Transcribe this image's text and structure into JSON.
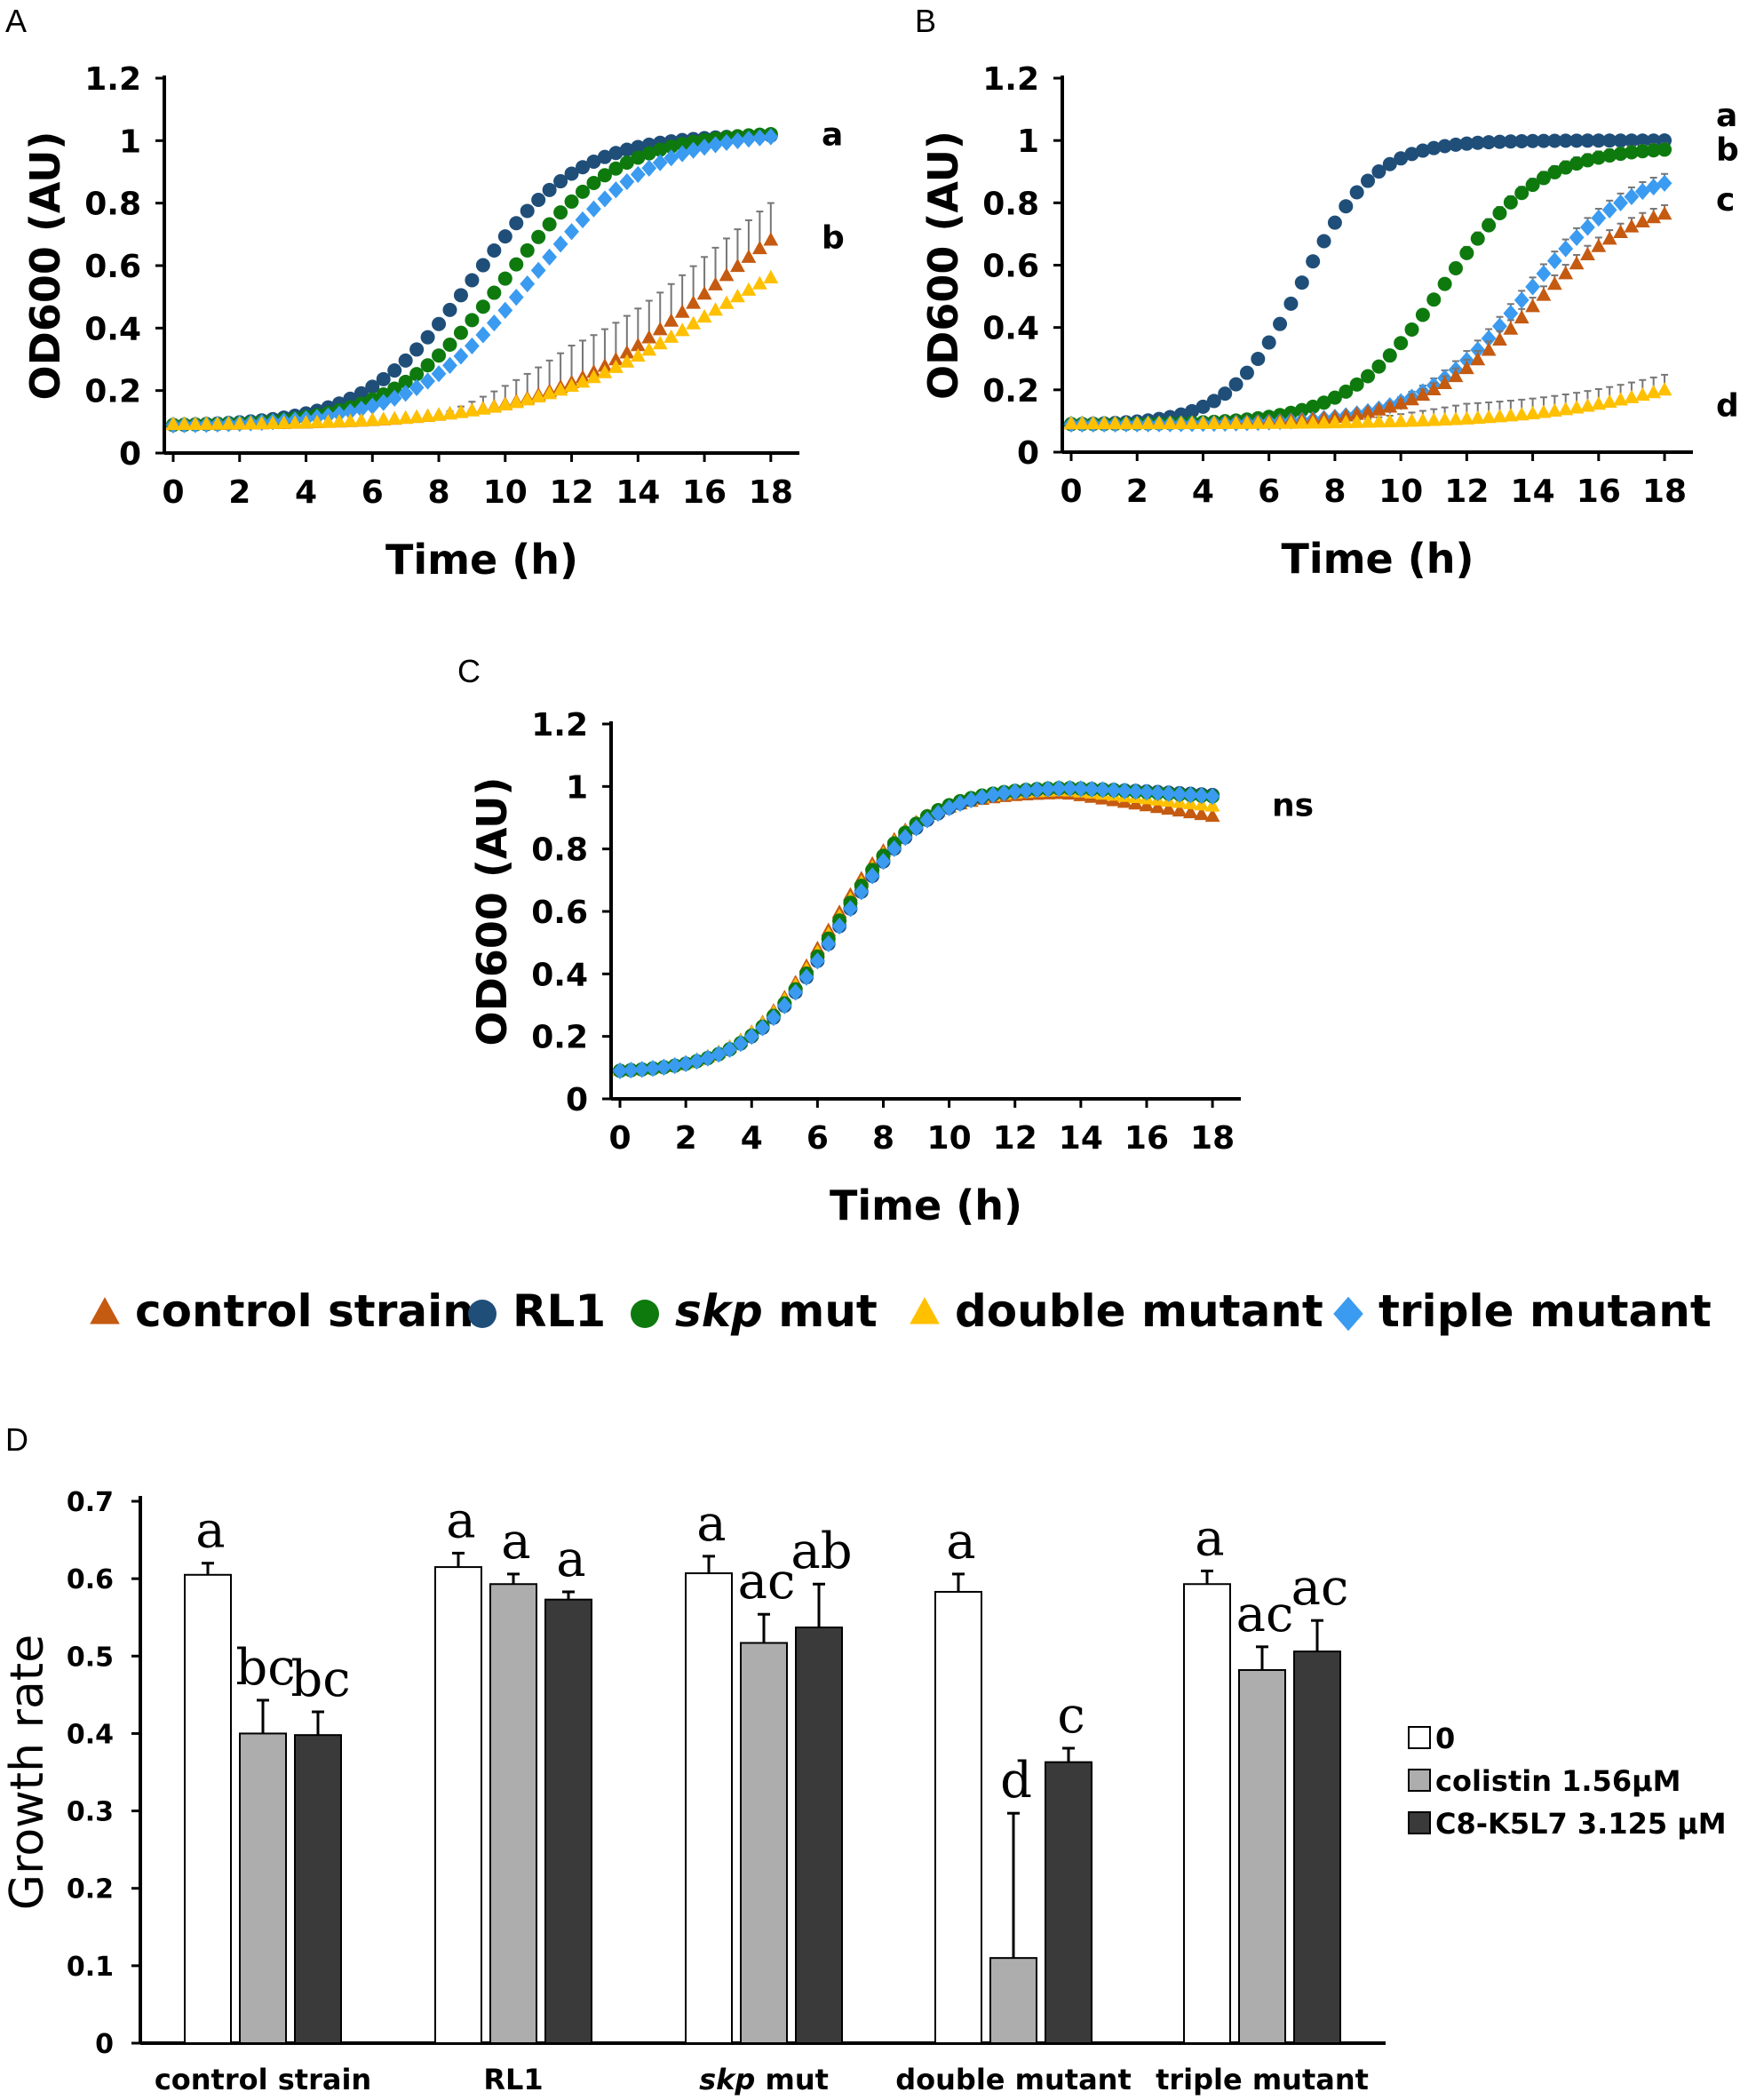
{
  "colors": {
    "control": "#C55A11",
    "rl1": "#1F4E79",
    "skp": "#0E7A0E",
    "double": "#FFC000",
    "triple": "#3A9BF0",
    "bar0": "#FFFFFF",
    "barColistin": "#ADADAD",
    "barC8": "#3A3A3A"
  },
  "legend": {
    "items": [
      {
        "key": "control",
        "shape": "triangle",
        "label": "control strain"
      },
      {
        "key": "rl1",
        "shape": "circle",
        "label": "RL1"
      },
      {
        "key": "skp",
        "shape": "circle",
        "label_italic": "skp",
        "label": " mut"
      },
      {
        "key": "double",
        "shape": "triangle",
        "label": "double mutant"
      },
      {
        "key": "triple",
        "shape": "diamond",
        "label": "triple mutant"
      }
    ]
  },
  "chart_data": [
    {
      "panel": "A",
      "type": "scatter",
      "xlabel": "Time (h)",
      "ylabel": "OD600 (AU)",
      "xticks": [
        "0",
        "2",
        "4",
        "6",
        "8",
        "10",
        "12",
        "14",
        "16",
        "18"
      ],
      "yticks": [
        "0",
        "0.2",
        "0.4",
        "0.6",
        "0.8",
        "1",
        "1.2"
      ],
      "xlim": [
        0,
        18.5
      ],
      "ylim": [
        0,
        1.2
      ],
      "series": [
        {
          "key": "rl1",
          "name": "RL1",
          "model": {
            "base": 0.09,
            "max": 1.02,
            "mid": 9.0,
            "k": 0.62,
            "droop": 0
          }
        },
        {
          "key": "skp",
          "name": "skp mut",
          "model": {
            "base": 0.09,
            "max": 1.03,
            "mid": 10.0,
            "k": 0.58,
            "droop": 0
          }
        },
        {
          "key": "triple",
          "name": "triple mutant",
          "model": {
            "base": 0.09,
            "max": 1.03,
            "mid": 10.8,
            "k": 0.55,
            "droop": 0
          }
        },
        {
          "key": "control",
          "name": "control strain",
          "model": {
            "base": 0.09,
            "max": 0.98,
            "mid": 16.3,
            "k": 0.4,
            "droop": 0
          },
          "err": 0.12
        },
        {
          "key": "double",
          "name": "double mutant",
          "model": {
            "base": 0.09,
            "max": 0.78,
            "mid": 16.0,
            "k": 0.38,
            "droop": 0
          },
          "err": 0.0
        }
      ],
      "annotations": [
        {
          "text": "a",
          "y": 1.02
        },
        {
          "text": "b",
          "y": 0.69
        }
      ]
    },
    {
      "panel": "B",
      "type": "scatter",
      "xlabel": "Time (h)",
      "ylabel": "OD600 (AU)",
      "xticks": [
        "0",
        "2",
        "4",
        "6",
        "8",
        "10",
        "12",
        "14",
        "16",
        "18"
      ],
      "yticks": [
        "0",
        "0.2",
        "0.4",
        "0.6",
        "0.8",
        "1",
        "1.2"
      ],
      "xlim": [
        0,
        18.5
      ],
      "ylim": [
        0,
        1.2
      ],
      "series": [
        {
          "key": "rl1",
          "name": "RL1",
          "model": {
            "base": 0.09,
            "max": 1.0,
            "mid": 7.0,
            "k": 0.9,
            "droop": 0.0
          }
        },
        {
          "key": "skp",
          "name": "skp mut",
          "model": {
            "base": 0.09,
            "max": 0.98,
            "mid": 11.3,
            "k": 0.68,
            "droop": 0
          },
          "err": 0.02
        },
        {
          "key": "triple",
          "name": "triple mutant",
          "model": {
            "base": 0.09,
            "max": 0.92,
            "mid": 13.8,
            "k": 0.62,
            "droop": 0
          },
          "err": 0.03
        },
        {
          "key": "control",
          "name": "control strain",
          "model": {
            "base": 0.09,
            "max": 0.82,
            "mid": 13.9,
            "k": 0.6,
            "droop": 0
          },
          "err": 0.03
        },
        {
          "key": "double",
          "name": "double mutant",
          "model": {
            "base": 0.09,
            "max": 0.36,
            "mid": 19.0,
            "k": 0.4,
            "droop": 0
          },
          "err": 0.05
        }
      ],
      "annotations": [
        {
          "text": "a",
          "y": 1.08
        },
        {
          "text": "b",
          "y": 0.97
        },
        {
          "text": "c",
          "y": 0.81
        },
        {
          "text": "d",
          "y": 0.15
        }
      ]
    },
    {
      "panel": "C",
      "type": "scatter",
      "xlabel": "Time (h)",
      "ylabel": "OD600 (AU)",
      "xticks": [
        "0",
        "2",
        "4",
        "6",
        "8",
        "10",
        "12",
        "14",
        "16",
        "18"
      ],
      "yticks": [
        "0",
        "0.2",
        "0.4",
        "0.6",
        "0.8",
        "1",
        "1.2"
      ],
      "xlim": [
        0,
        18.5
      ],
      "ylim": [
        0,
        1.2
      ],
      "series": [
        {
          "key": "control",
          "name": "control strain",
          "model": {
            "base": 0.09,
            "max": 0.98,
            "mid": 6.3,
            "k": 0.78,
            "droop": 0.017
          }
        },
        {
          "key": "double",
          "name": "double mutant",
          "model": {
            "base": 0.09,
            "max": 0.99,
            "mid": 6.4,
            "k": 0.76,
            "droop": 0.012
          }
        },
        {
          "key": "rl1",
          "name": "RL1",
          "model": {
            "base": 0.09,
            "max": 1.0,
            "mid": 6.6,
            "k": 0.74,
            "droop": 0.006
          }
        },
        {
          "key": "skp",
          "name": "skp mut",
          "model": {
            "base": 0.09,
            "max": 1.0,
            "mid": 6.5,
            "k": 0.76,
            "droop": 0.007
          }
        },
        {
          "key": "triple",
          "name": "triple mutant",
          "model": {
            "base": 0.09,
            "max": 1.0,
            "mid": 6.6,
            "k": 0.74,
            "droop": 0.007
          }
        }
      ],
      "annotations": [
        {
          "text": "ns",
          "y": 0.94
        }
      ]
    },
    {
      "panel": "D",
      "type": "bar",
      "ylabel": "Growth rate",
      "ylim": [
        0,
        0.7
      ],
      "yticks": [
        "0",
        "0.1",
        "0.2",
        "0.3",
        "0.4",
        "0.5",
        "0.6",
        "0.7"
      ],
      "categories": [
        "control strain",
        "RL1",
        "skp mut",
        "double mutant",
        "triple mutant"
      ],
      "category_italic": [
        null,
        null,
        "skp",
        null,
        null
      ],
      "series": [
        {
          "key": "bar0",
          "name": "0",
          "values": [
            0.605,
            0.615,
            0.607,
            0.583,
            0.593
          ],
          "errors": [
            0.015,
            0.018,
            0.022,
            0.023,
            0.017
          ],
          "labels": [
            "a",
            "a",
            "a",
            "a",
            "a"
          ]
        },
        {
          "key": "barColistin",
          "name": "colistin 1.56μM",
          "values": [
            0.4,
            0.593,
            0.517,
            0.11,
            0.482
          ],
          "errors": [
            0.043,
            0.013,
            0.037,
            0.187,
            0.03
          ],
          "labels": [
            "bc",
            "a",
            "ac",
            "d",
            "ac"
          ]
        },
        {
          "key": "barC8",
          "name": "C8-K5L7 3.125 μM",
          "values": [
            0.398,
            0.573,
            0.537,
            0.363,
            0.506
          ],
          "errors": [
            0.03,
            0.01,
            0.056,
            0.018,
            0.04
          ],
          "labels": [
            "bc",
            "a",
            "ab",
            "c",
            "ac"
          ]
        }
      ]
    }
  ]
}
